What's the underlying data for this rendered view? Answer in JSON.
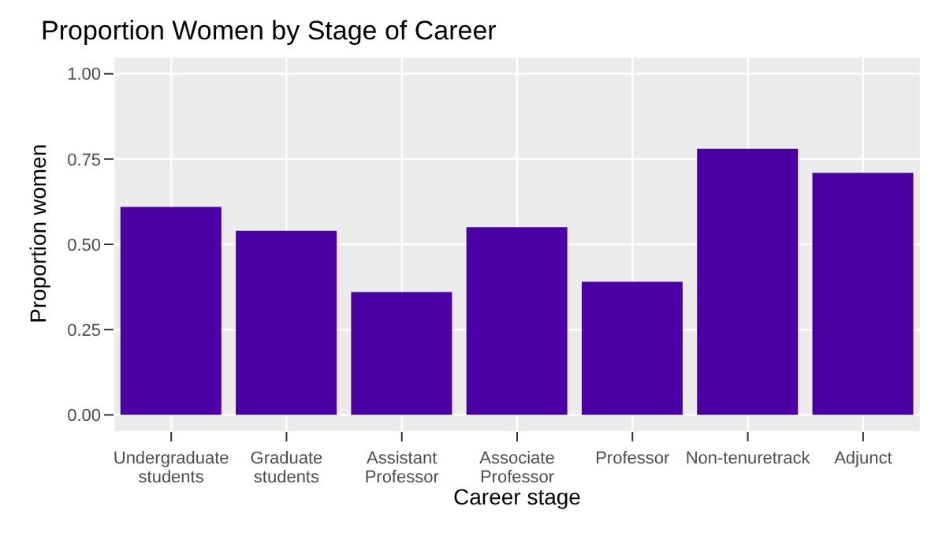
{
  "chart_data": {
    "type": "bar",
    "title": "Proportion Women by Stage of Career",
    "xlabel": "Career stage",
    "ylabel": "Proportion women",
    "categories": [
      "Undergraduate\nstudents",
      "Graduate\nstudents",
      "Assistant\nProfessor",
      "Associate\nProfessor",
      "Professor",
      "Non-tenuretrack",
      "Adjunct"
    ],
    "values": [
      0.61,
      0.54,
      0.36,
      0.55,
      0.39,
      0.78,
      0.71
    ],
    "color": "#4b00a5",
    "ylim": [
      -0.05,
      1.05
    ],
    "yticks": [
      {
        "value": 0,
        "label": "0.00"
      },
      0.25,
      {
        "value": 0.5,
        "label": "0.50"
      },
      0.75,
      {
        "value": 1,
        "label": "1.00"
      }
    ],
    "grid": true
  }
}
